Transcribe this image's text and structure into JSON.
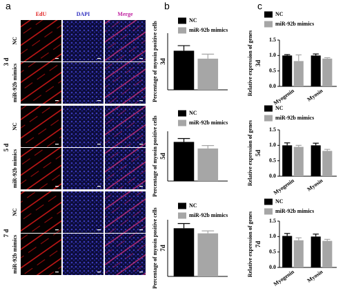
{
  "panel_labels": [
    "a",
    "b",
    "c"
  ],
  "columns": [
    "EdU",
    "DAPI",
    "Merge"
  ],
  "groups": [
    {
      "label": "3 d",
      "rows": [
        "NC",
        "miR-92b mimics"
      ]
    },
    {
      "label": "5 d",
      "rows": [
        "NC",
        "miR-92b mimics"
      ]
    },
    {
      "label": "7 d",
      "rows": [
        "NC",
        "miR-92b mimics"
      ]
    }
  ],
  "chart_data": [
    {
      "type": "bar",
      "ylabel": "Percentage of myosin positive cells",
      "time": "3d",
      "ylim": [
        0,
        10
      ],
      "series": [
        {
          "name": "NC",
          "color": "#000000",
          "values": [
            6.9
          ],
          "errors": [
            0.9
          ]
        },
        {
          "name": "miR-92b mimics",
          "color": "#a6a6a6",
          "values": [
            5.5
          ],
          "errors": [
            0.8
          ]
        }
      ]
    },
    {
      "type": "bar",
      "ylabel": "Percentage of myosin positive cells",
      "time": "5d",
      "ylim": [
        0,
        22
      ],
      "series": [
        {
          "name": "NC",
          "color": "#000000",
          "values": [
            17.3
          ],
          "errors": [
            1.5
          ]
        },
        {
          "name": "miR-92b mimics",
          "color": "#a6a6a6",
          "values": [
            14.4
          ],
          "errors": [
            1.3
          ]
        }
      ]
    },
    {
      "type": "bar",
      "ylabel": "Percentage of myosin positive cells",
      "time": "7d",
      "ylim": [
        0,
        30
      ],
      "series": [
        {
          "name": "NC",
          "color": "#000000",
          "values": [
            25.5
          ],
          "errors": [
            2.5
          ]
        },
        {
          "name": "miR-92b mimics",
          "color": "#a6a6a6",
          "values": [
            22.8
          ],
          "errors": [
            1.3
          ]
        }
      ]
    },
    {
      "type": "bar",
      "ylabel": "Relative expression of genes",
      "time": "3d",
      "ylim": [
        0,
        1.5
      ],
      "yticks": [
        {
          "value": 0,
          "label": "0.0"
        },
        {
          "value": 0.5,
          "label": "0.5"
        },
        {
          "value": 1,
          "label": "1.0"
        },
        {
          "value": 1.5,
          "label": "1.5"
        }
      ],
      "categories": [
        "Myogenin",
        "Myosin"
      ],
      "series": [
        {
          "name": "NC",
          "color": "#000000",
          "values": [
            1.0,
            1.0
          ],
          "errors": [
            0.03,
            0.05
          ]
        },
        {
          "name": "miR-92b mimics",
          "color": "#a6a6a6",
          "values": [
            0.82,
            0.9
          ],
          "errors": [
            0.2,
            0.03
          ]
        }
      ]
    },
    {
      "type": "bar",
      "ylabel": "Relative expression of genes",
      "time": "5d",
      "ylim": [
        0,
        1.5
      ],
      "yticks": [
        {
          "value": 0,
          "label": "0.0"
        },
        {
          "value": 0.5,
          "label": "0.5"
        },
        {
          "value": 1,
          "label": "1.0"
        },
        {
          "value": 1.5,
          "label": "1.5"
        }
      ],
      "categories": [
        "Myogenin",
        "Myosin"
      ],
      "series": [
        {
          "name": "NC",
          "color": "#000000",
          "values": [
            1.0,
            1.0
          ],
          "errors": [
            0.08,
            0.07
          ]
        },
        {
          "name": "miR-92b mimics",
          "color": "#a6a6a6",
          "values": [
            0.95,
            0.82
          ],
          "errors": [
            0.05,
            0.05
          ]
        }
      ]
    },
    {
      "type": "bar",
      "ylabel": "Relative expression of genes",
      "time": "7d",
      "ylim": [
        0,
        1.5
      ],
      "yticks": [
        {
          "value": 0,
          "label": "0.0"
        },
        {
          "value": 0.5,
          "label": "0.5"
        },
        {
          "value": 1,
          "label": "1.0"
        },
        {
          "value": 1.5,
          "label": "1.5"
        }
      ],
      "categories": [
        "Myogenin",
        "Myosin"
      ],
      "series": [
        {
          "name": "NC",
          "color": "#000000",
          "values": [
            1.02,
            1.0
          ],
          "errors": [
            0.08,
            0.08
          ]
        },
        {
          "name": "miR-92b mimics",
          "color": "#a6a6a6",
          "values": [
            0.88,
            0.86
          ],
          "errors": [
            0.08,
            0.05
          ]
        }
      ]
    }
  ]
}
